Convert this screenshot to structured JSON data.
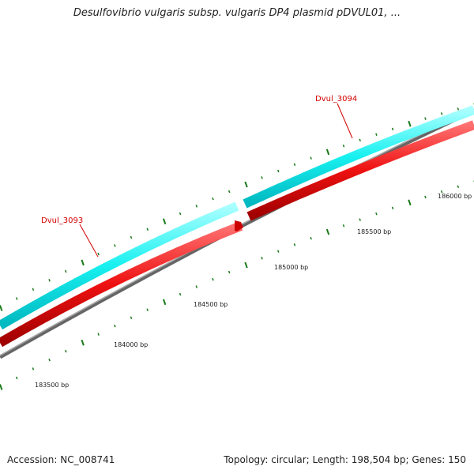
{
  "title": "Desulfovibrio vulgaris subsp. vulgaris DP4 plasmid pDVUL01, ...",
  "footer": {
    "accession": "Accession: NC_008741",
    "summary": "Topology: circular; Length: 198,504 bp; Genes: 150"
  },
  "colors": {
    "forward_strand": "#18f0f0",
    "reverse_strand": "#ee1111",
    "backbone": "#888888",
    "ticks": "#1a7a1a",
    "gene_label": "#d40000"
  },
  "genes": [
    {
      "name": "Dvul_3093",
      "strand": "reverse"
    },
    {
      "name": "Dvul_3094",
      "strand": "forward"
    }
  ],
  "scale_labels": [
    "183500 bp",
    "184000 bp",
    "184500 bp",
    "185000 bp",
    "185500 bp",
    "186000 bp"
  ]
}
